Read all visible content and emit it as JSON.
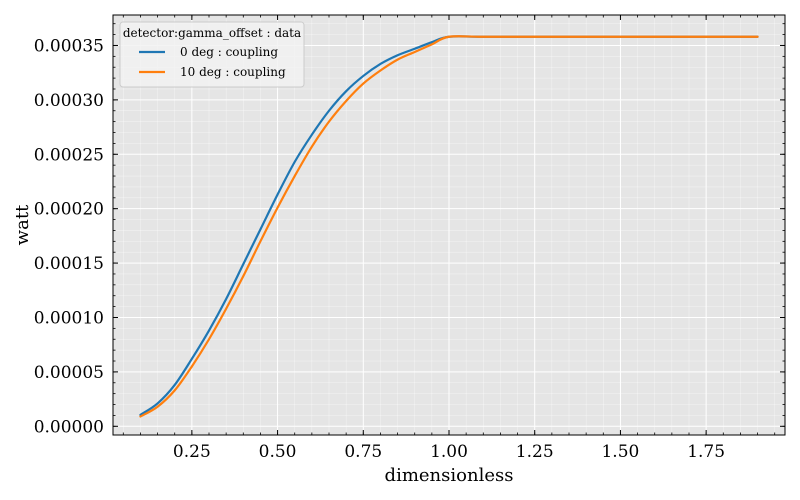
{
  "chart_data": {
    "type": "line",
    "title": "",
    "xlabel": "dimensionless",
    "ylabel": "watt",
    "xlim": [
      0.02,
      1.98
    ],
    "ylim": [
      -8e-06,
      0.000378
    ],
    "xticks": [
      0.25,
      0.5,
      0.75,
      1.0,
      1.25,
      1.5,
      1.75
    ],
    "xtick_labels": [
      "0.25",
      "0.50",
      "0.75",
      "1.00",
      "1.25",
      "1.50",
      "1.75"
    ],
    "yticks": [
      0.0,
      5e-05,
      0.0001,
      0.00015,
      0.0002,
      0.00025,
      0.0003,
      0.00035
    ],
    "ytick_labels": [
      "0.00000",
      "0.00005",
      "0.00010",
      "0.00015",
      "0.00020",
      "0.00025",
      "0.00030",
      "0.00035"
    ],
    "grid": true,
    "legend": {
      "title": "detector:gamma_offset : data",
      "placement": "top-left"
    },
    "series": [
      {
        "name": "0 deg : coupling",
        "color": "#1f77b4",
        "x": [
          0.1,
          0.15,
          0.2,
          0.25,
          0.3,
          0.35,
          0.4,
          0.45,
          0.5,
          0.55,
          0.6,
          0.65,
          0.7,
          0.75,
          0.8,
          0.85,
          0.9,
          0.95,
          1.0,
          1.1,
          1.3,
          1.5,
          1.7,
          1.9
        ],
        "y": [
          1.05e-05,
          2.1e-05,
          3.8e-05,
          6.2e-05,
          8.8e-05,
          0.000117,
          0.000149,
          0.000181,
          0.000213,
          0.000243,
          0.000268,
          0.00029,
          0.000308,
          0.000322,
          0.000333,
          0.000341,
          0.000347,
          0.000353,
          0.000358,
          0.000358,
          0.000358,
          0.000358,
          0.000358,
          0.000358
        ]
      },
      {
        "name": "10 deg : coupling",
        "color": "#ff7f0e",
        "x": [
          0.1,
          0.15,
          0.2,
          0.25,
          0.3,
          0.35,
          0.4,
          0.45,
          0.5,
          0.55,
          0.6,
          0.65,
          0.7,
          0.75,
          0.8,
          0.85,
          0.9,
          0.95,
          1.0,
          1.1,
          1.3,
          1.5,
          1.7,
          1.9
        ],
        "y": [
          9e-06,
          1.8e-05,
          3.3e-05,
          5.5e-05,
          8e-05,
          0.000108,
          0.000138,
          0.00017,
          0.000201,
          0.00023,
          0.000257,
          0.00028,
          0.000299,
          0.000315,
          0.000327,
          0.000337,
          0.000344,
          0.000351,
          0.000358,
          0.000358,
          0.000358,
          0.000358,
          0.000358,
          0.000358
        ]
      }
    ]
  }
}
